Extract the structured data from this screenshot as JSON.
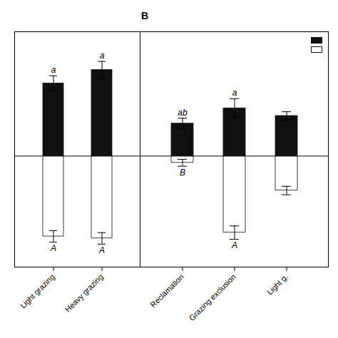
{
  "chart_data": [
    {
      "type": "bar",
      "categories": [
        "Light grazing",
        "Heavy grazing"
      ],
      "series": [
        {
          "color": "#111111",
          "values": [
            3.8,
            4.5
          ],
          "errors": [
            0.4,
            0.45
          ],
          "labels": [
            "a",
            "a"
          ]
        },
        {
          "color": "#ffffff",
          "values": [
            -4.2,
            -4.3
          ],
          "errors": [
            0.3,
            0.3
          ],
          "labels": [
            "A",
            "A"
          ]
        }
      ],
      "ylim": [
        -5.8,
        6.5
      ],
      "tick_labels": "x"
    },
    {
      "type": "bar",
      "title": "B",
      "categories": [
        "Reclamation",
        "Grazing exclusion",
        "Light g."
      ],
      "series": [
        {
          "color": "#111111",
          "values": [
            1.7,
            2.5,
            2.1
          ],
          "errors": [
            0.28,
            0.5,
            0.22
          ],
          "labels": [
            "ab",
            "a",
            null
          ]
        },
        {
          "color": "#ffffff",
          "values": [
            -0.35,
            -4.0,
            -1.8
          ],
          "errors": [
            0.18,
            0.35,
            0.22
          ],
          "labels": [
            "B",
            "A",
            null
          ]
        }
      ],
      "ylim": [
        -5.8,
        6.5
      ],
      "tick_labels": "x",
      "legend": "upper right"
    }
  ]
}
